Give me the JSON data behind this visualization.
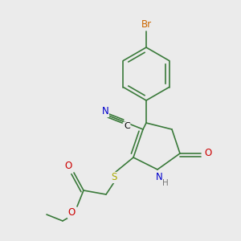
{
  "bg_color": "#ebebeb",
  "bond_color": "#3a7a3a",
  "atoms": {
    "Br": {
      "color": "#cc6600",
      "fontsize": 8.5
    },
    "N": {
      "color": "#0000cc",
      "fontsize": 8.5
    },
    "O": {
      "color": "#cc0000",
      "fontsize": 8.5
    },
    "S": {
      "color": "#aaaa00",
      "fontsize": 8.5
    },
    "C": {
      "color": "#000000",
      "fontsize": 8.5
    },
    "N_cyan": {
      "color": "#0000cc",
      "fontsize": 8.5
    },
    "H": {
      "color": "#777777",
      "fontsize": 7.5
    }
  },
  "figsize": [
    3.0,
    3.0
  ],
  "dpi": 100
}
